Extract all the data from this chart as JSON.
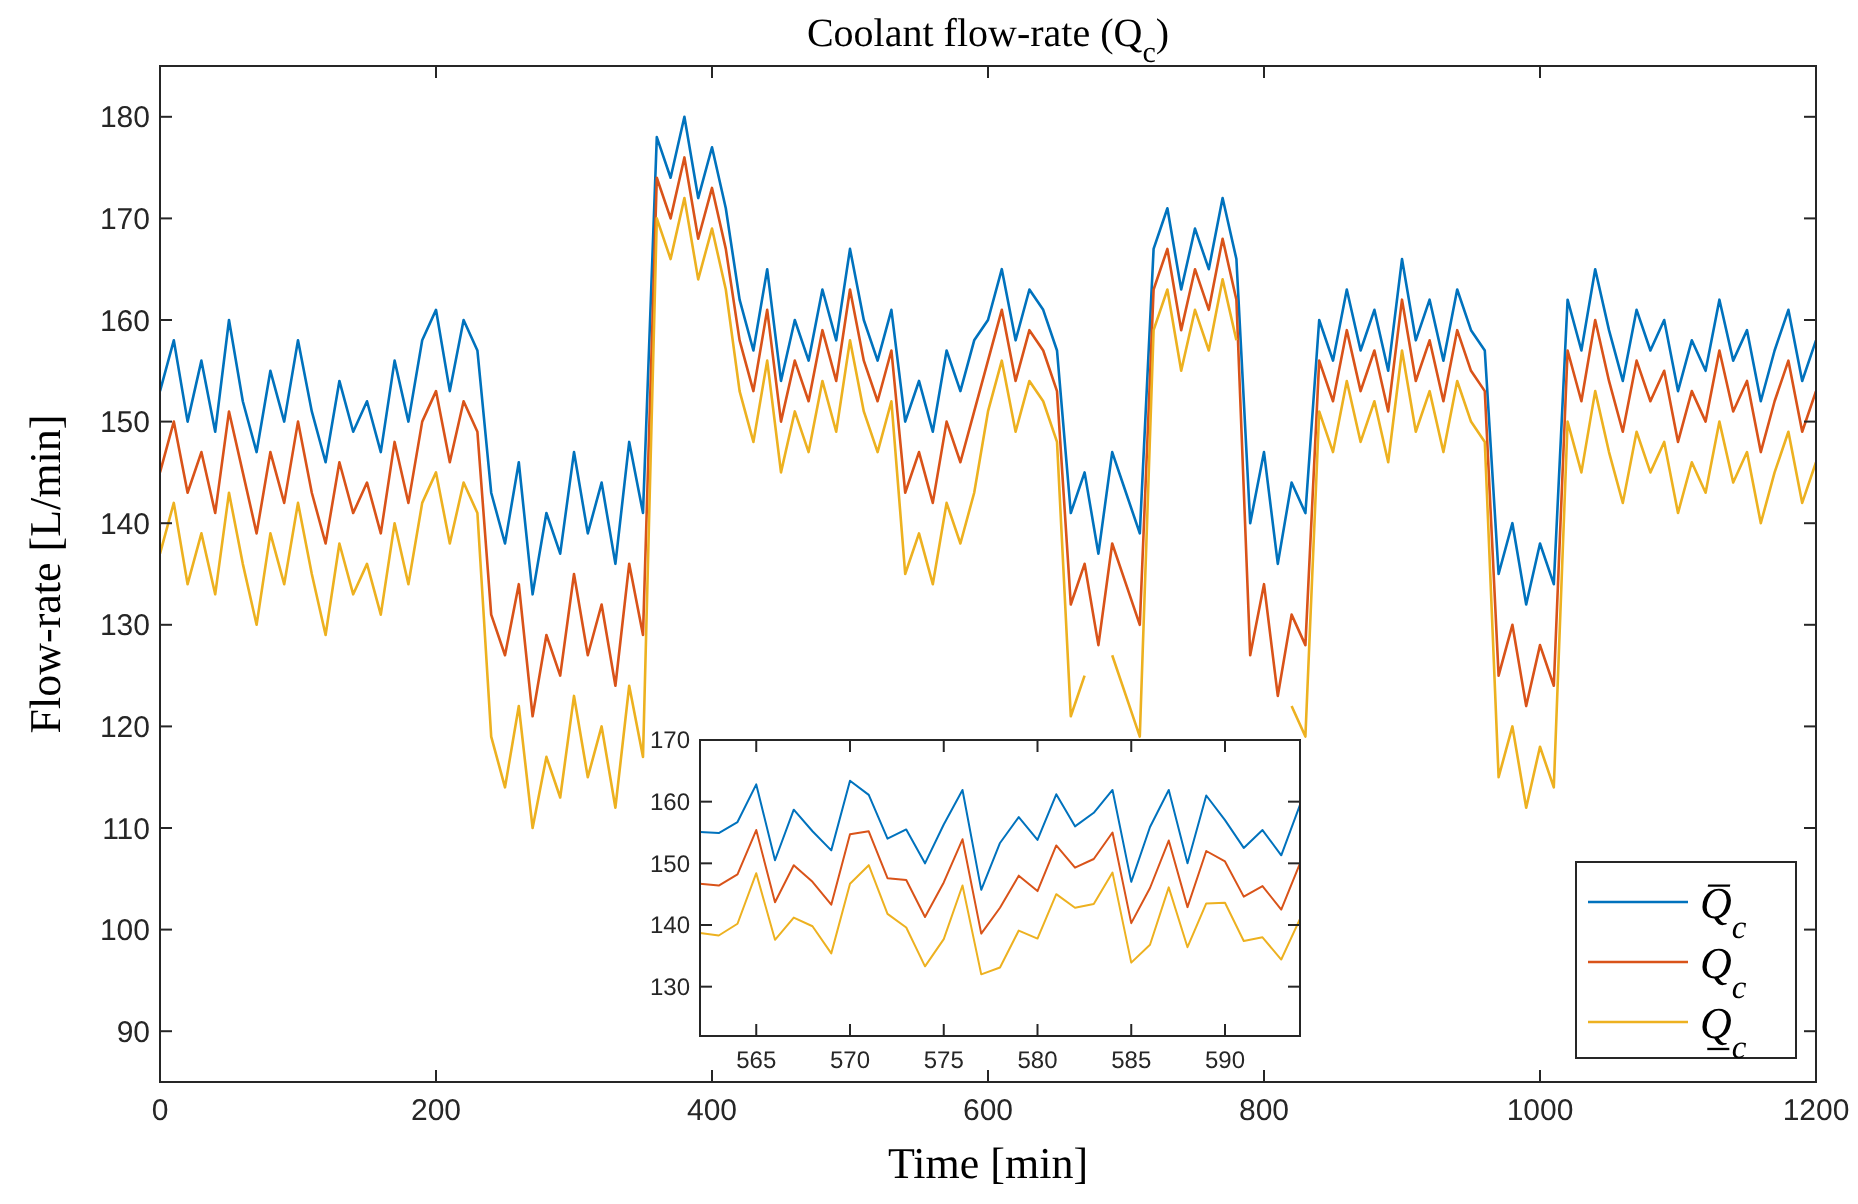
{
  "chart_data": [
    {
      "type": "line",
      "title": "Coolant flow-rate (Q$_{c}$)",
      "xlabel": "Time [min]",
      "ylabel": "Flow-rate [L/min]",
      "xlim": [
        0,
        1200
      ],
      "ylim": [
        85,
        185
      ],
      "xticks": [
        0,
        200,
        400,
        600,
        800,
        1000,
        1200
      ],
      "yticks": [
        90,
        100,
        110,
        120,
        130,
        140,
        150,
        160,
        170,
        180
      ],
      "legend": "bottom right",
      "grid": false,
      "x": [
        0,
        10,
        20,
        30,
        40,
        50,
        60,
        70,
        80,
        90,
        100,
        110,
        120,
        130,
        140,
        150,
        160,
        170,
        180,
        190,
        200,
        210,
        220,
        230,
        240,
        250,
        260,
        270,
        280,
        290,
        300,
        310,
        320,
        330,
        340,
        350,
        360,
        370,
        380,
        390,
        400,
        410,
        420,
        430,
        440,
        450,
        460,
        470,
        480,
        490,
        500,
        510,
        520,
        530,
        540,
        550,
        560,
        570,
        580,
        590,
        600,
        610,
        620,
        630,
        640,
        650,
        660,
        670,
        680,
        690,
        700,
        710,
        720,
        730,
        740,
        750,
        760,
        770,
        780,
        790,
        800,
        810,
        820,
        830,
        840,
        850,
        860,
        870,
        880,
        890,
        900,
        910,
        920,
        930,
        940,
        950,
        960,
        970,
        980,
        990,
        1000,
        1010,
        1020,
        1030,
        1040,
        1050,
        1060,
        1070,
        1080,
        1090,
        1100,
        1110,
        1120,
        1130,
        1140,
        1150,
        1160,
        1170,
        1180,
        1190,
        1200
      ],
      "series": [
        {
          "name": "Q̅$_{c}$",
          "color": "#0072bd",
          "values": [
            153,
            158,
            150,
            156,
            149,
            160,
            152,
            147,
            155,
            150,
            158,
            151,
            146,
            154,
            149,
            152,
            147,
            156,
            150,
            158,
            161,
            153,
            160,
            157,
            143,
            138,
            146,
            133,
            141,
            137,
            147,
            139,
            144,
            136,
            148,
            141,
            178,
            174,
            180,
            172,
            177,
            171,
            162,
            157,
            165,
            154,
            160,
            156,
            163,
            158,
            167,
            160,
            156,
            161,
            150,
            154,
            149,
            157,
            153,
            158,
            160,
            165,
            158,
            163,
            161,
            157,
            141,
            145,
            137,
            147,
            143,
            139,
            167,
            171,
            163,
            169,
            165,
            172,
            166,
            140,
            147,
            136,
            144,
            141,
            160,
            156,
            163,
            157,
            161,
            155,
            166,
            158,
            162,
            156,
            163,
            159,
            157,
            135,
            140,
            132,
            138,
            134,
            162,
            157,
            165,
            159,
            154,
            161,
            157,
            160,
            153,
            158,
            155,
            162,
            156,
            159,
            152,
            157,
            161,
            154,
            158
          ]
        },
        {
          "name": "Q$_{c}$",
          "color": "#d95319",
          "values": [
            145,
            150,
            143,
            147,
            141,
            151,
            145,
            139,
            147,
            142,
            150,
            143,
            138,
            146,
            141,
            144,
            139,
            148,
            142,
            150,
            153,
            146,
            152,
            149,
            131,
            127,
            134,
            121,
            129,
            125,
            135,
            127,
            132,
            124,
            136,
            129,
            174,
            170,
            176,
            168,
            173,
            167,
            158,
            153,
            161,
            150,
            156,
            152,
            159,
            154,
            163,
            156,
            152,
            157,
            143,
            147,
            142,
            150,
            146,
            151,
            156,
            161,
            154,
            159,
            157,
            153,
            132,
            136,
            128,
            138,
            134,
            130,
            163,
            167,
            159,
            165,
            161,
            168,
            162,
            127,
            134,
            123,
            131,
            128,
            156,
            152,
            159,
            153,
            157,
            151,
            162,
            154,
            158,
            152,
            159,
            155,
            153,
            125,
            130,
            122,
            128,
            124,
            157,
            152,
            160,
            154,
            149,
            156,
            152,
            155,
            148,
            153,
            150,
            157,
            151,
            154,
            147,
            152,
            156,
            149,
            153
          ]
        },
        {
          "name": "Q̲$_{c}$",
          "color": "#edb120",
          "values": [
            137,
            142,
            134,
            139,
            133,
            143,
            136,
            130,
            139,
            134,
            142,
            135,
            129,
            138,
            133,
            136,
            131,
            140,
            134,
            142,
            145,
            138,
            144,
            141,
            119,
            114,
            122,
            110,
            117,
            113,
            123,
            115,
            120,
            112,
            124,
            117,
            170,
            166,
            172,
            164,
            169,
            163,
            153,
            148,
            156,
            145,
            151,
            147,
            154,
            149,
            158,
            151,
            147,
            152,
            135,
            139,
            134,
            142,
            138,
            143,
            151,
            156,
            149,
            154,
            152,
            148,
            121,
            125,
            null,
            127,
            123,
            119,
            159,
            163,
            155,
            161,
            157,
            164,
            158,
            null,
            null,
            null,
            122,
            119,
            151,
            147,
            154,
            148,
            152,
            146,
            157,
            149,
            153,
            147,
            154,
            150,
            148,
            115,
            120,
            112,
            118,
            114,
            150,
            145,
            153,
            147,
            142,
            149,
            145,
            148,
            141,
            146,
            143,
            150,
            144,
            147,
            140,
            145,
            149,
            142,
            146
          ]
        }
      ]
    },
    {
      "type": "line",
      "xlim": [
        562,
        594
      ],
      "ylim": [
        122,
        170
      ],
      "xticks": [
        565,
        570,
        575,
        580,
        585,
        590
      ],
      "yticks": [
        130,
        140,
        150,
        160,
        170
      ],
      "grid": false,
      "x": [
        562,
        563,
        564,
        565,
        566,
        567,
        568,
        569,
        570,
        571,
        572,
        573,
        574,
        575,
        576,
        577,
        578,
        579,
        580,
        581,
        582,
        583,
        584,
        585,
        586,
        587,
        588,
        589,
        590,
        591,
        592,
        593,
        594
      ],
      "series": [
        {
          "color": "#0072bd",
          "values": [
            155.1,
            154.9,
            156.7,
            162.8,
            150.5,
            158.7,
            155.2,
            152.1,
            163.4,
            161.1,
            154,
            155.5,
            150,
            156.3,
            161.9,
            145.7,
            153.3,
            157.5,
            153.8,
            161.2,
            156,
            158.2,
            161.9,
            147,
            155.9,
            161.9,
            150,
            161,
            157,
            152.5,
            155.4,
            151.3,
            159.5
          ]
        },
        {
          "color": "#d95319",
          "values": [
            146.7,
            146.4,
            148.2,
            155.4,
            143.7,
            149.7,
            147,
            143.3,
            154.7,
            155.2,
            147.6,
            147.3,
            141.3,
            146.9,
            153.9,
            138.6,
            142.8,
            148,
            145.5,
            152.9,
            149.3,
            150.7,
            155,
            140.3,
            146,
            153.7,
            142.9,
            152,
            150.3,
            144.6,
            146.3,
            142.5,
            150
          ]
        },
        {
          "color": "#edb120",
          "values": [
            138.7,
            138.3,
            140.2,
            148.4,
            137.6,
            141.2,
            139.8,
            135.4,
            146.7,
            149.7,
            141.8,
            139.6,
            133.3,
            137.7,
            146.4,
            132,
            133.1,
            139.1,
            137.8,
            145,
            142.8,
            143.4,
            148.5,
            133.9,
            136.8,
            146.1,
            136.4,
            143.5,
            143.6,
            137.4,
            138,
            134.4,
            141
          ]
        }
      ]
    }
  ]
}
